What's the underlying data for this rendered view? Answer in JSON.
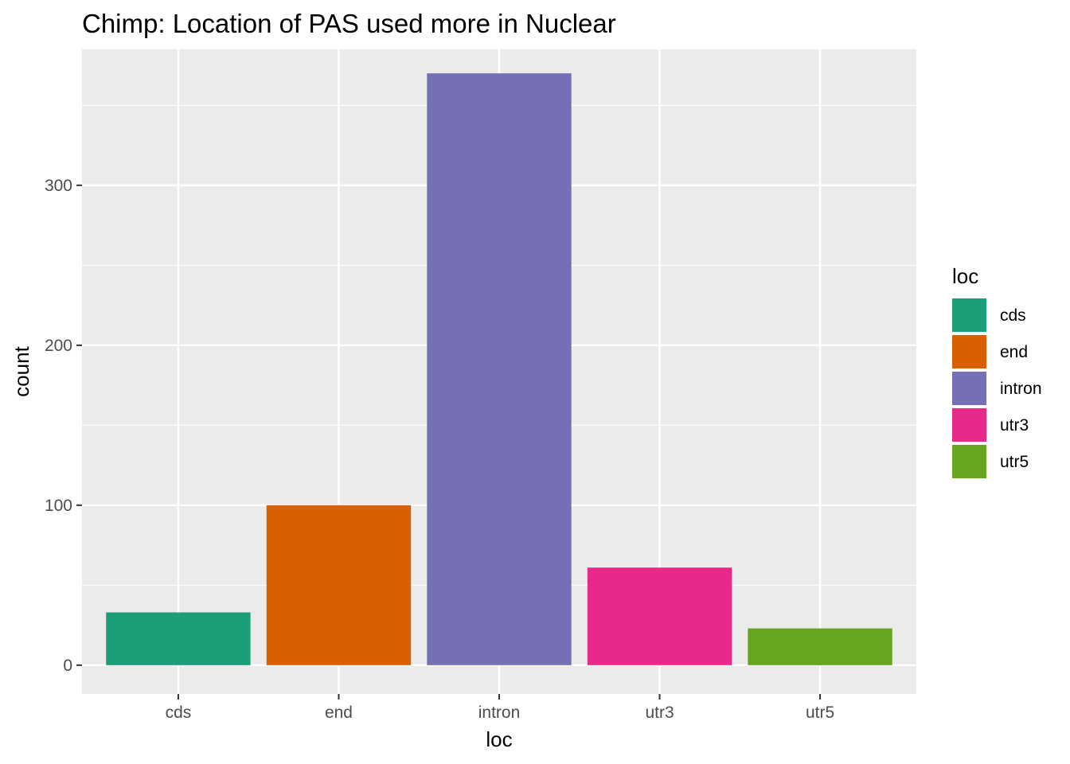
{
  "chart_data": {
    "type": "bar",
    "title": "Chimp: Location of PAS used more in Nuclear",
    "xlabel": "loc",
    "ylabel": "count",
    "categories": [
      "cds",
      "end",
      "intron",
      "utr3",
      "utr5"
    ],
    "values": [
      33,
      100,
      370,
      61,
      23
    ],
    "colors": [
      "#1B9E77",
      "#D95F02",
      "#7570B3",
      "#E7298A",
      "#66A61E"
    ],
    "yticks": [
      0,
      100,
      200,
      300
    ],
    "ylim": [
      -18,
      385
    ],
    "grid": true,
    "panel_color": "#EBEBEB",
    "legend": {
      "title": "loc",
      "placement": "right",
      "entries": [
        "cds",
        "end",
        "intron",
        "utr3",
        "utr5"
      ]
    }
  }
}
